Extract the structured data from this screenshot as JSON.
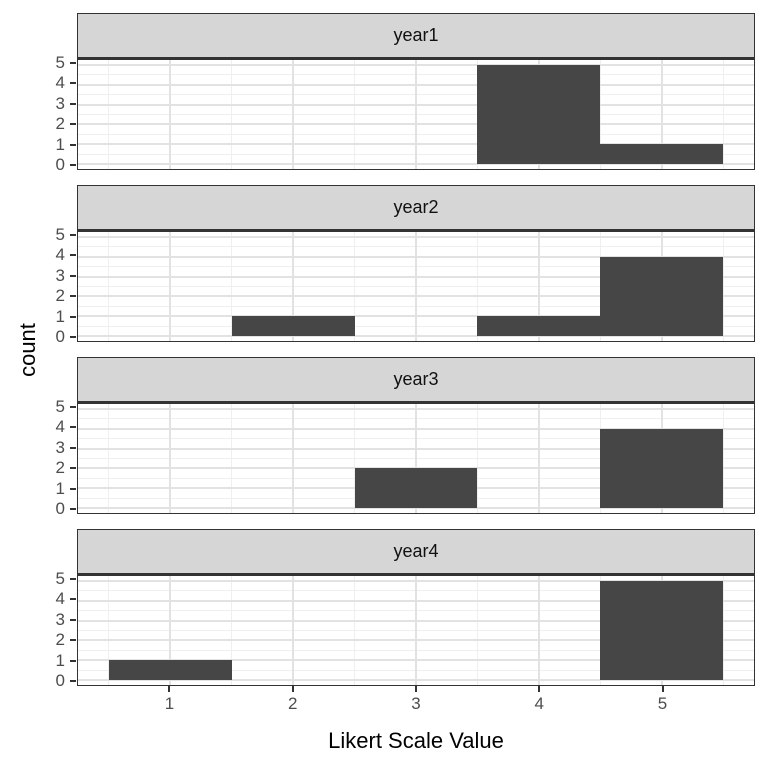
{
  "chart_data": {
    "type": "bar",
    "subtype": "faceted-histogram",
    "title": "",
    "xlabel": "Likert Scale Value",
    "ylabel": "count",
    "x_ticks": [
      1,
      2,
      3,
      4,
      5
    ],
    "y_ticks": [
      0,
      1,
      2,
      3,
      4,
      5
    ],
    "xlim": [
      0.25,
      5.75
    ],
    "ylim": [
      -0.25,
      5.25
    ],
    "bar_width": 1,
    "grid": true,
    "legend": "none",
    "facets": [
      {
        "label": "year1",
        "bars": [
          {
            "x": 4,
            "count": 5
          },
          {
            "x": 5,
            "count": 1
          }
        ]
      },
      {
        "label": "year2",
        "bars": [
          {
            "x": 2,
            "count": 1
          },
          {
            "x": 4,
            "count": 1
          },
          {
            "x": 5,
            "count": 4
          }
        ]
      },
      {
        "label": "year3",
        "bars": [
          {
            "x": 3,
            "count": 2
          },
          {
            "x": 5,
            "count": 4
          }
        ]
      },
      {
        "label": "year4",
        "bars": [
          {
            "x": 1,
            "count": 1
          },
          {
            "x": 5,
            "count": 5
          }
        ]
      }
    ],
    "colors": {
      "bar_fill": "#464646",
      "strip_fill": "#D6D6D6",
      "strip_border": "#333333",
      "panel_border": "#333333",
      "panel_background": "#FFFFFF",
      "grid_major": "#E2E2E2",
      "grid_minor": "#EFEFEF",
      "tick_mark": "#333333",
      "tick_label": "#4D4D4D",
      "axis_title": "#000000"
    }
  }
}
